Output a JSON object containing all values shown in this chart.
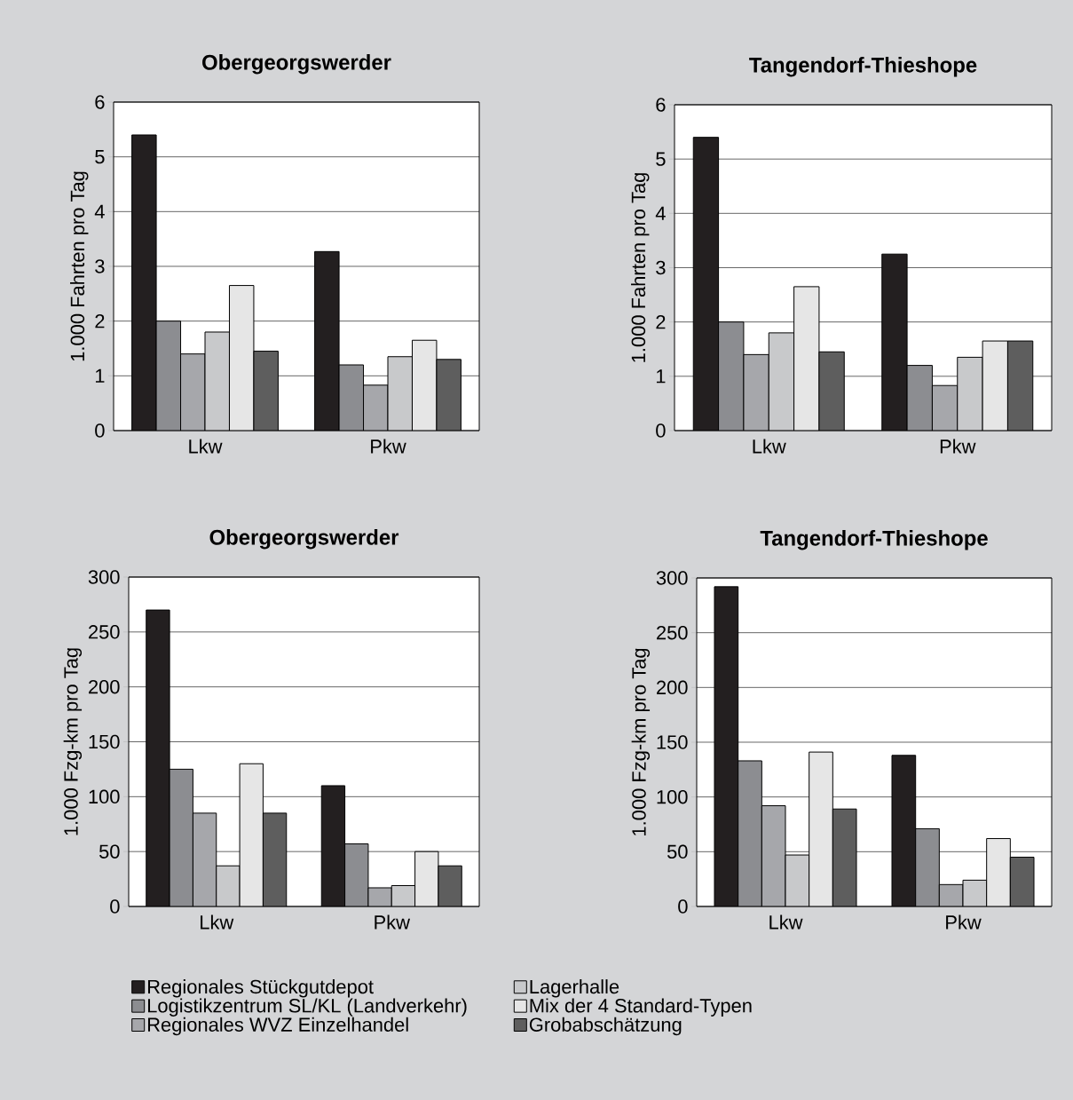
{
  "chart_data": [
    {
      "type": "bar",
      "title": "Obergeorgswerder",
      "ylabel": "1.000 Fahrten pro Tag",
      "categories": [
        "Lkw",
        "Pkw"
      ],
      "ylim": [
        0,
        6
      ],
      "yticks": [
        0,
        1,
        2,
        3,
        4,
        5,
        6
      ],
      "grid": "y",
      "series": [
        {
          "color": "#231f20",
          "values": [
            5.4,
            3.27
          ]
        },
        {
          "color": "#8c8d91",
          "values": [
            2.0,
            1.2
          ]
        },
        {
          "color": "#a6a7ab",
          "values": [
            1.4,
            0.83
          ]
        },
        {
          "color": "#c8c9cb",
          "values": [
            1.8,
            1.35
          ]
        },
        {
          "color": "#e6e6e6",
          "values": [
            2.65,
            1.65
          ]
        },
        {
          "color": "#5e5e5e",
          "values": [
            1.45,
            1.3
          ]
        }
      ]
    },
    {
      "type": "bar",
      "title": "Tangendorf-Thieshope",
      "ylabel": "1.000 Fahrten pro Tag",
      "categories": [
        "Lkw",
        "Pkw"
      ],
      "ylim": [
        0,
        6
      ],
      "yticks": [
        0,
        1,
        2,
        3,
        4,
        5,
        6
      ],
      "grid": "y",
      "series": [
        {
          "color": "#231f20",
          "values": [
            5.4,
            3.25
          ]
        },
        {
          "color": "#8c8d91",
          "values": [
            2.0,
            1.2
          ]
        },
        {
          "color": "#a6a7ab",
          "values": [
            1.4,
            0.83
          ]
        },
        {
          "color": "#c8c9cb",
          "values": [
            1.8,
            1.35
          ]
        },
        {
          "color": "#e6e6e6",
          "values": [
            2.65,
            1.65
          ]
        },
        {
          "color": "#5e5e5e",
          "values": [
            1.45,
            1.65
          ]
        }
      ]
    },
    {
      "type": "bar",
      "title": "Obergeorgswerder",
      "ylabel": "1.000 Fzg-km pro Tag",
      "categories": [
        "Lkw",
        "Pkw"
      ],
      "ylim": [
        0,
        300
      ],
      "yticks": [
        0,
        50,
        100,
        150,
        200,
        250,
        300
      ],
      "grid": "y",
      "legend": "bottom",
      "series": [
        {
          "name": "Regionales Stückgutdepot",
          "color": "#231f20",
          "values": [
            270,
            110
          ]
        },
        {
          "name": "Logistikzentrum SL/KL (Landverkehr)",
          "color": "#8c8d91",
          "values": [
            125,
            57
          ]
        },
        {
          "name": "Regionales WVZ Einzelhandel",
          "color": "#a6a7ab",
          "values": [
            85,
            17
          ]
        },
        {
          "name": "Lagerhalle",
          "color": "#c8c9cb",
          "values": [
            37,
            19
          ]
        },
        {
          "name": "Mix der 4 Standard-Typen",
          "color": "#e6e6e6",
          "values": [
            130,
            50
          ]
        },
        {
          "name": "Grobabschätzung",
          "color": "#5e5e5e",
          "values": [
            85,
            37
          ]
        }
      ]
    },
    {
      "type": "bar",
      "title": "Tangendorf-Thieshope",
      "ylabel": "1.000 Fzg-km pro Tag",
      "categories": [
        "Lkw",
        "Pkw"
      ],
      "ylim": [
        0,
        300
      ],
      "yticks": [
        0,
        50,
        100,
        150,
        200,
        250,
        300
      ],
      "grid": "y",
      "series": [
        {
          "color": "#231f20",
          "values": [
            292,
            138
          ]
        },
        {
          "color": "#8c8d91",
          "values": [
            133,
            71
          ]
        },
        {
          "color": "#a6a7ab",
          "values": [
            92,
            20
          ]
        },
        {
          "color": "#c8c9cb",
          "values": [
            47,
            24
          ]
        },
        {
          "color": "#e6e6e6",
          "values": [
            141,
            62
          ]
        },
        {
          "color": "#5e5e5e",
          "values": [
            89,
            45
          ]
        }
      ]
    }
  ]
}
